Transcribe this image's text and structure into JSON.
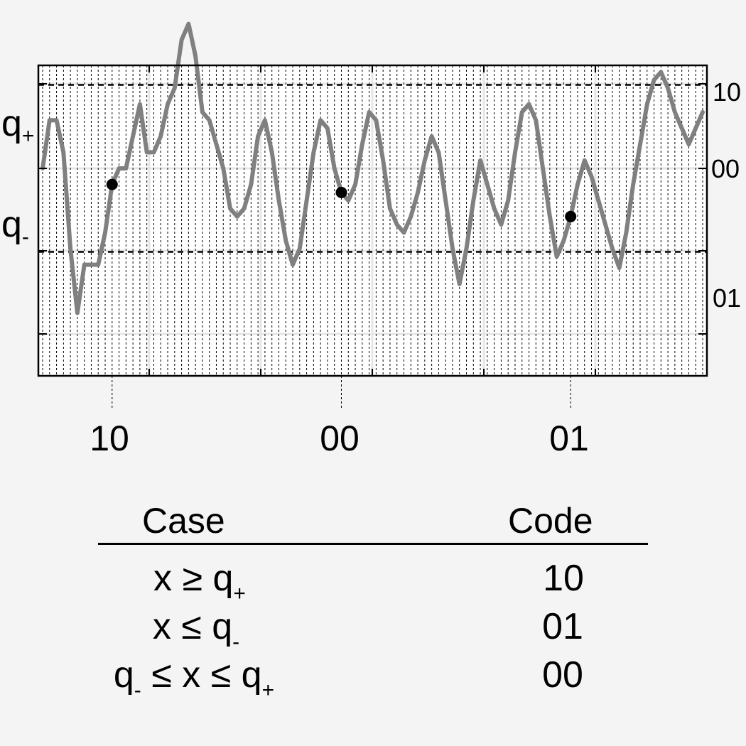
{
  "chart_data": {
    "type": "line",
    "right_axis_ticks": [
      "10",
      "00",
      "01"
    ],
    "threshold_labels": {
      "upper": {
        "base": "q",
        "sub": "+"
      },
      "lower": {
        "base": "q",
        "sub": "-"
      }
    },
    "thresholds": {
      "upper": 0.52,
      "lower": -0.52
    },
    "ylim": [
      -1.65,
      0.85
    ],
    "x_samples": 96,
    "grid": true,
    "series": [
      {
        "color": "#808080",
        "values": [
          0,
          0.3,
          0.3,
          0.1,
          -0.5,
          -0.9,
          -0.6,
          -0.6,
          -0.6,
          -0.4,
          -0.1,
          0,
          0,
          0.2,
          0.4,
          0.1,
          0.1,
          0.2,
          0.4,
          0.5,
          0.8,
          0.9,
          0.7,
          0.35,
          0.3,
          0.15,
          0,
          -0.25,
          -0.3,
          -0.25,
          -0.1,
          0.2,
          0.3,
          0.1,
          -0.2,
          -0.45,
          -0.6,
          -0.5,
          -0.2,
          0.1,
          0.3,
          0.25,
          0,
          -0.15,
          -0.2,
          -0.1,
          0.15,
          0.35,
          0.3,
          0.05,
          -0.25,
          -0.35,
          -0.4,
          -0.3,
          -0.15,
          0.05,
          0.2,
          0.1,
          -0.2,
          -0.5,
          -0.72,
          -0.5,
          -0.2,
          0.05,
          -0.1,
          -0.25,
          -0.35,
          -0.2,
          0.1,
          0.35,
          0.4,
          0.3,
          0,
          -0.3,
          -0.55,
          -0.45,
          -0.3,
          -0.1,
          0.05,
          -0.05,
          -0.2,
          -0.35,
          -0.5,
          -0.62,
          -0.4,
          -0.1,
          0.15,
          0.4,
          0.55,
          0.6,
          0.5,
          0.35,
          0.25,
          0.15,
          0.25,
          0.35
        ]
      }
    ],
    "marked_points": [
      {
        "index": 10,
        "label": "10"
      },
      {
        "index": 43,
        "label": "00"
      },
      {
        "index": 76,
        "label": "01"
      }
    ]
  },
  "table": {
    "headers": {
      "case": "Case",
      "code": "Code"
    },
    "rows": [
      {
        "case": "x ≥ q",
        "case_sub": "+",
        "code": "10"
      },
      {
        "case": "x ≤ q",
        "case_sub": "-",
        "code": "01"
      },
      {
        "case_pre": "q",
        "case_pre_sub": "-",
        "case": " ≤ x ≤ q",
        "case_sub": "+",
        "code": "00"
      }
    ]
  }
}
